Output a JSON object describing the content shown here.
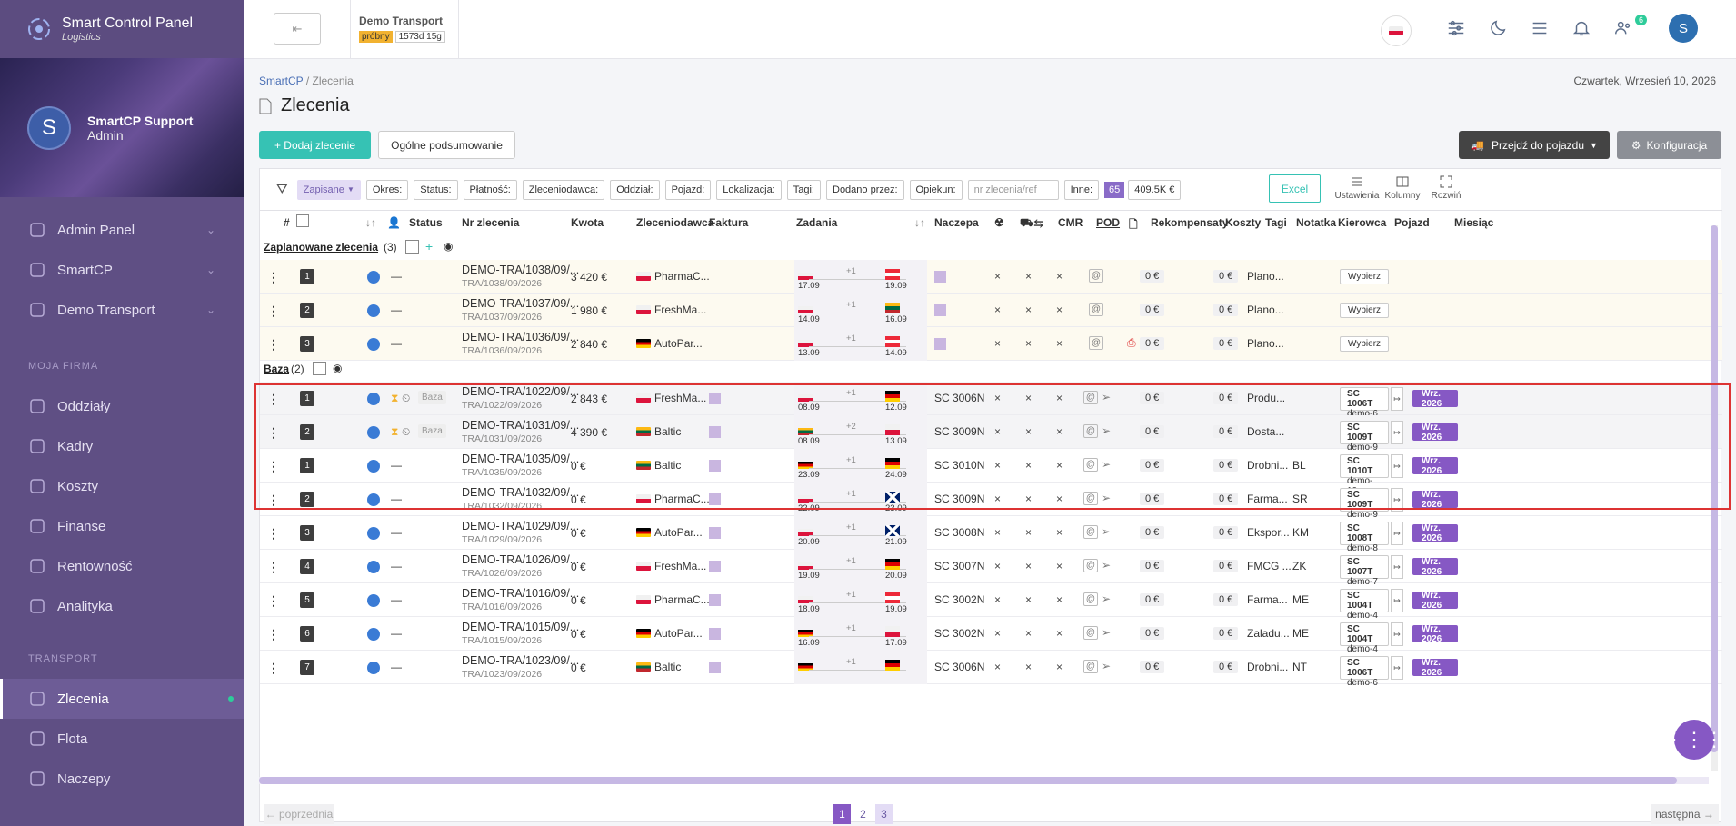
{
  "brand": {
    "title": "Smart Control Panel",
    "subtitle": "Logistics"
  },
  "profile": {
    "initial": "S",
    "name": "SmartCP Support",
    "role": "Admin"
  },
  "nav_top": [
    {
      "label": "Admin Panel",
      "icon": "grid-icon"
    },
    {
      "label": "SmartCP",
      "icon": "home-icon"
    },
    {
      "label": "Demo Transport",
      "icon": "user-circle-icon"
    }
  ],
  "section_company": "MOJA FIRMA",
  "nav_company": [
    {
      "label": "Oddziały",
      "icon": "branches-icon"
    },
    {
      "label": "Kadry",
      "icon": "people-icon"
    },
    {
      "label": "Koszty",
      "icon": "coins-icon"
    },
    {
      "label": "Finanse",
      "icon": "dollar-icon"
    },
    {
      "label": "Rentowność",
      "icon": "bar-chart-icon"
    },
    {
      "label": "Analityka",
      "icon": "network-icon"
    }
  ],
  "section_transport": "TRANSPORT",
  "nav_transport": [
    {
      "label": "Zlecenia",
      "icon": "document-icon",
      "active": true
    },
    {
      "label": "Flota",
      "icon": "truck-icon"
    },
    {
      "label": "Naczepy",
      "icon": "trailer-icon"
    }
  ],
  "topbar": {
    "company": "Demo Transport",
    "badge_trial": "próbny",
    "badge_time": "1573d 15g",
    "notif_count": "6",
    "user_initial": "S"
  },
  "breadcrumb": {
    "root": "SmartCP",
    "sep": "/",
    "current": "Zlecenia"
  },
  "date": "Czwartek, Wrzesień 10, 2026",
  "page_title": "Zlecenia",
  "buttons": {
    "add": "+ Dodaj zlecenie",
    "summary": "Ogólne podsumowanie",
    "vehicle": "Przejdź do pojazdu",
    "config": "Konfiguracja"
  },
  "filters": {
    "saved": "Zapisane",
    "chips": [
      "Okres:",
      "Status:",
      "Płatność:",
      "Zleceniodawca:",
      "Oddział:",
      "Pojazd:",
      "Lokalizacja:",
      "Tagi:",
      "Dodano przez:",
      "Opiekun:"
    ],
    "search_placeholder": "nr zlecenia/ref",
    "other": "Inne:",
    "count": "65",
    "total": "409.5K €"
  },
  "toolbar": {
    "excel": "Excel",
    "settings": "Ustawienia",
    "columns": "Kolumny",
    "expand": "Rozwiń"
  },
  "columns": {
    "hash": "#",
    "status": "Status",
    "order": "Nr zlecenia",
    "amount": "Kwota",
    "client": "Zleceniodawca",
    "invoice": "Faktura",
    "tasks": "Zadania",
    "trailer": "Naczepa",
    "cmr": "CMR",
    "pod": "POD",
    "comp": "Rekompensaty",
    "costs": "Koszty",
    "tags": "Tagi",
    "note": "Notatka",
    "driver": "Kierowca",
    "vehicle": "Pojazd",
    "month": "Miesiąc"
  },
  "groups": {
    "planned": {
      "name": "Zaplanowane zlecenia",
      "count": "(3)"
    },
    "base": {
      "name": "Baza",
      "count": "(2)"
    }
  },
  "labels": {
    "pick": "Wybierz",
    "wrz": "Wrz. 2026",
    "zero": "0 €",
    "x": "×",
    "dash": "—",
    "baza": "Baza"
  },
  "rows_planned": [
    {
      "n": "1",
      "nr": "DEMO-TRA/1038/09/...",
      "sub": "TRA/1038/09/2026",
      "amt": "3 420 €",
      "fl": "pl",
      "cl": "PharmaC...",
      "plus": "+1",
      "f1": "pl",
      "d1": "17.09",
      "f2": "at",
      "d2": "19.09",
      "note": "Plano..."
    },
    {
      "n": "2",
      "nr": "DEMO-TRA/1037/09/...",
      "sub": "TRA/1037/09/2026",
      "amt": "1 980 €",
      "fl": "pl",
      "cl": "FreshMa...",
      "plus": "+1",
      "f1": "pl",
      "d1": "14.09",
      "f2": "lt",
      "d2": "16.09",
      "note": "Plano..."
    },
    {
      "n": "3",
      "nr": "DEMO-TRA/1036/09/...",
      "sub": "TRA/1036/09/2026",
      "amt": "2 840 €",
      "fl": "de",
      "cl": "AutoPar...",
      "plus": "+1",
      "f1": "pl",
      "d1": "13.09",
      "f2": "at",
      "d2": "14.09",
      "note": "Plano..."
    }
  ],
  "rows_base": [
    {
      "n": "1",
      "nr": "DEMO-TRA/1022/09/...",
      "sub": "TRA/1022/09/2026",
      "amt": "2 843 €",
      "fl": "pl",
      "cl": "FreshMa...",
      "plus": "+1",
      "f1": "pl",
      "d1": "08.09",
      "f2": "de",
      "d2": "12.09",
      "trailer": "SC 3006N",
      "note": "Produ...",
      "veh": "SC 1006T",
      "veh2": "demo-6"
    },
    {
      "n": "2",
      "nr": "DEMO-TRA/1031/09/...",
      "sub": "TRA/1031/09/2026",
      "amt": "4 390 €",
      "fl": "lt",
      "cl": "Baltic",
      "plus": "+2",
      "f1": "lt",
      "d1": "08.09",
      "f2": "pl",
      "d2": "13.09",
      "trailer": "SC 3009N",
      "note": "Dosta...",
      "veh": "SC 1009T",
      "veh2": "demo-9"
    }
  ],
  "rows": [
    {
      "n": "1",
      "nr": "DEMO-TRA/1035/09/...",
      "sub": "TRA/1035/09/2026",
      "amt": "0 €",
      "fl": "lt",
      "cl": "Baltic",
      "plus": "+1",
      "f1": "de",
      "d1": "23.09",
      "f2": "de",
      "d2": "24.09",
      "trailer": "SC 3010N",
      "note": "Drobni...",
      "drv": "BL",
      "veh": "SC 1010T",
      "veh2": "demo-10"
    },
    {
      "n": "2",
      "nr": "DEMO-TRA/1032/09/...",
      "sub": "TRA/1032/09/2026",
      "amt": "0 €",
      "fl": "pl",
      "cl": "PharmaC...",
      "plus": "+1",
      "f1": "pl",
      "d1": "22.09",
      "f2": "gb",
      "d2": "23.09",
      "trailer": "SC 3009N",
      "note": "Farma...",
      "drv": "SR",
      "veh": "SC 1009T",
      "veh2": "demo-9"
    },
    {
      "n": "3",
      "nr": "DEMO-TRA/1029/09/...",
      "sub": "TRA/1029/09/2026",
      "amt": "0 €",
      "fl": "de",
      "cl": "AutoPar...",
      "plus": "+1",
      "f1": "pl",
      "d1": "20.09",
      "f2": "gb",
      "d2": "21.09",
      "trailer": "SC 3008N",
      "note": "Ekspor...",
      "drv": "KM",
      "veh": "SC 1008T",
      "veh2": "demo-8"
    },
    {
      "n": "4",
      "nr": "DEMO-TRA/1026/09/...",
      "sub": "TRA/1026/09/2026",
      "amt": "0 €",
      "fl": "pl",
      "cl": "FreshMa...",
      "plus": "+1",
      "f1": "pl",
      "d1": "19.09",
      "f2": "de",
      "d2": "20.09",
      "trailer": "SC 3007N",
      "note": "FMCG ...",
      "drv": "ZK",
      "veh": "SC 1007T",
      "veh2": "demo-7"
    },
    {
      "n": "5",
      "nr": "DEMO-TRA/1016/09/...",
      "sub": "TRA/1016/09/2026",
      "amt": "0 €",
      "fl": "pl",
      "cl": "PharmaC...",
      "plus": "+1",
      "f1": "pl",
      "d1": "18.09",
      "f2": "at",
      "d2": "19.09",
      "trailer": "SC 3002N",
      "note": "Farma...",
      "drv": "ME",
      "veh": "SC 1004T",
      "veh2": "demo-4"
    },
    {
      "n": "6",
      "nr": "DEMO-TRA/1015/09/...",
      "sub": "TRA/1015/09/2026",
      "amt": "0 €",
      "fl": "de",
      "cl": "AutoPar...",
      "plus": "+1",
      "f1": "de",
      "d1": "16.09",
      "f2": "pl",
      "d2": "17.09",
      "trailer": "SC 3002N",
      "note": "Zaladu...",
      "drv": "ME",
      "veh": "SC 1004T",
      "veh2": "demo-4"
    },
    {
      "n": "7",
      "nr": "DEMO-TRA/1023/09/...",
      "sub": "TRA/1023/09/2026",
      "amt": "0 €",
      "fl": "lt",
      "cl": "Baltic",
      "plus": "+1",
      "f1": "de",
      "d1": "",
      "f2": "de",
      "d2": "",
      "trailer": "SC 3006N",
      "note": "Drobni...",
      "drv": "NT",
      "veh": "SC 1006T",
      "veh2": "demo-6"
    }
  ],
  "pager": {
    "prev": "← poprzednia",
    "next": "następna →",
    "pages": [
      "1",
      "2",
      "3"
    ]
  }
}
